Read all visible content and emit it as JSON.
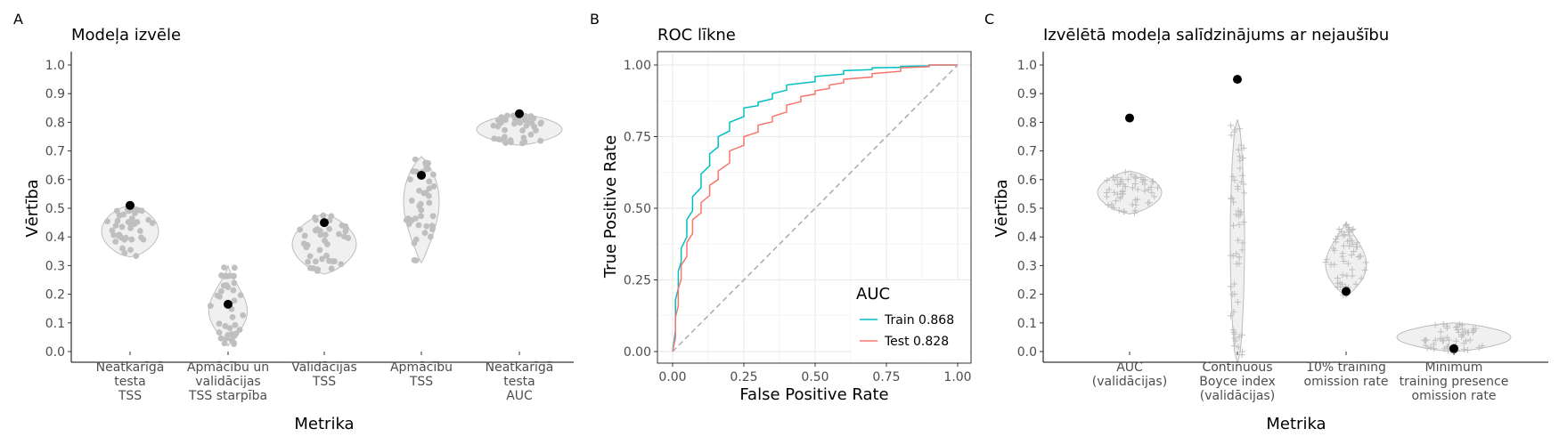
{
  "chart_data": [
    {
      "tag": "A",
      "type": "violin",
      "title": "Modeļa izvēle",
      "xlabel": "Metrika",
      "ylabel": "Vērtība",
      "ylim": [
        0,
        1
      ],
      "yticks": [
        "0.0",
        "0.1",
        "0.2",
        "0.3",
        "0.4",
        "0.5",
        "0.6",
        "0.7",
        "0.8",
        "0.9",
        "1.0"
      ],
      "categories": [
        [
          "Neatkarīgā",
          "testa",
          "TSS"
        ],
        [
          "Apmācību un",
          "validācijas",
          "TSS starpība"
        ],
        [
          "Validācijas",
          "TSS"
        ],
        [
          "Apmācību",
          "TSS"
        ],
        [
          "Neatkarīgā",
          "testa",
          "AUC"
        ]
      ],
      "point_color": "#bfbfbf",
      "selected_color": "#000000",
      "violins": [
        {
          "min": 0.33,
          "max": 0.51,
          "selected": 0.51
        },
        {
          "min": 0.02,
          "max": 0.3,
          "selected": 0.165
        },
        {
          "min": 0.27,
          "max": 0.48,
          "selected": 0.45
        },
        {
          "min": 0.31,
          "max": 0.68,
          "selected": 0.615
        },
        {
          "min": 0.72,
          "max": 0.83,
          "selected": 0.83
        }
      ]
    },
    {
      "tag": "B",
      "type": "line",
      "title": "ROC līkne",
      "xlabel": "False Positive Rate",
      "ylabel": "True Positive Rate",
      "xlim": [
        0,
        1
      ],
      "ylim": [
        0,
        1
      ],
      "xticks": [
        "0.00",
        "0.25",
        "0.50",
        "0.75",
        "1.00"
      ],
      "yticks": [
        "0.00",
        "0.25",
        "0.50",
        "0.75",
        "1.00"
      ],
      "legend_title": "AUC",
      "legend_position": "bottom-right",
      "series": [
        {
          "name": "Train 0.868",
          "color": "#00BFC4",
          "x": [
            0,
            0.01,
            0.02,
            0.03,
            0.05,
            0.07,
            0.1,
            0.13,
            0.16,
            0.2,
            0.25,
            0.3,
            0.35,
            0.4,
            0.5,
            0.6,
            0.7,
            0.8,
            0.9,
            1.0
          ],
          "y": [
            0,
            0.18,
            0.28,
            0.36,
            0.46,
            0.54,
            0.62,
            0.69,
            0.75,
            0.8,
            0.85,
            0.87,
            0.9,
            0.93,
            0.96,
            0.98,
            0.99,
            0.995,
            1.0,
            1.0
          ]
        },
        {
          "name": "Test 0.828",
          "color": "#F8766D",
          "x": [
            0,
            0.01,
            0.02,
            0.03,
            0.05,
            0.07,
            0.1,
            0.13,
            0.16,
            0.2,
            0.25,
            0.3,
            0.35,
            0.4,
            0.45,
            0.5,
            0.55,
            0.6,
            0.7,
            0.8,
            0.9,
            1.0
          ],
          "y": [
            0,
            0.12,
            0.22,
            0.3,
            0.38,
            0.46,
            0.52,
            0.58,
            0.63,
            0.7,
            0.75,
            0.79,
            0.82,
            0.86,
            0.89,
            0.91,
            0.93,
            0.95,
            0.97,
            0.99,
            1.0,
            1.0
          ]
        },
        {
          "name": "",
          "color": "#aaaaaa",
          "dashed": true,
          "x": [
            0,
            1
          ],
          "y": [
            0,
            1
          ]
        }
      ]
    },
    {
      "tag": "C",
      "type": "violin",
      "title": "Izvēlētā modeļa salīdzinājums ar nejaušību",
      "xlabel": "Metrika",
      "ylabel": "Vērtība",
      "ylim": [
        0,
        1
      ],
      "yticks": [
        "0.0",
        "0.1",
        "0.2",
        "0.3",
        "0.4",
        "0.5",
        "0.6",
        "0.7",
        "0.8",
        "0.9",
        "1.0"
      ],
      "categories": [
        [
          "AUC",
          "(validācijas)"
        ],
        [
          "Continuous",
          "Boyce index",
          "(validācijas)"
        ],
        [
          "10% training",
          "omission rate"
        ],
        [
          "Minimum",
          "training presence",
          "omission rate"
        ]
      ],
      "point_color": "#bfbfbf",
      "selected_color": "#000000",
      "violins": [
        {
          "min": 0.48,
          "max": 0.63,
          "selected": 0.815
        },
        {
          "min": -0.04,
          "max": 0.81,
          "selected": 0.95
        },
        {
          "min": 0.19,
          "max": 0.45,
          "selected": 0.21
        },
        {
          "min": 0.0,
          "max": 0.1,
          "selected": 0.01
        }
      ]
    }
  ]
}
